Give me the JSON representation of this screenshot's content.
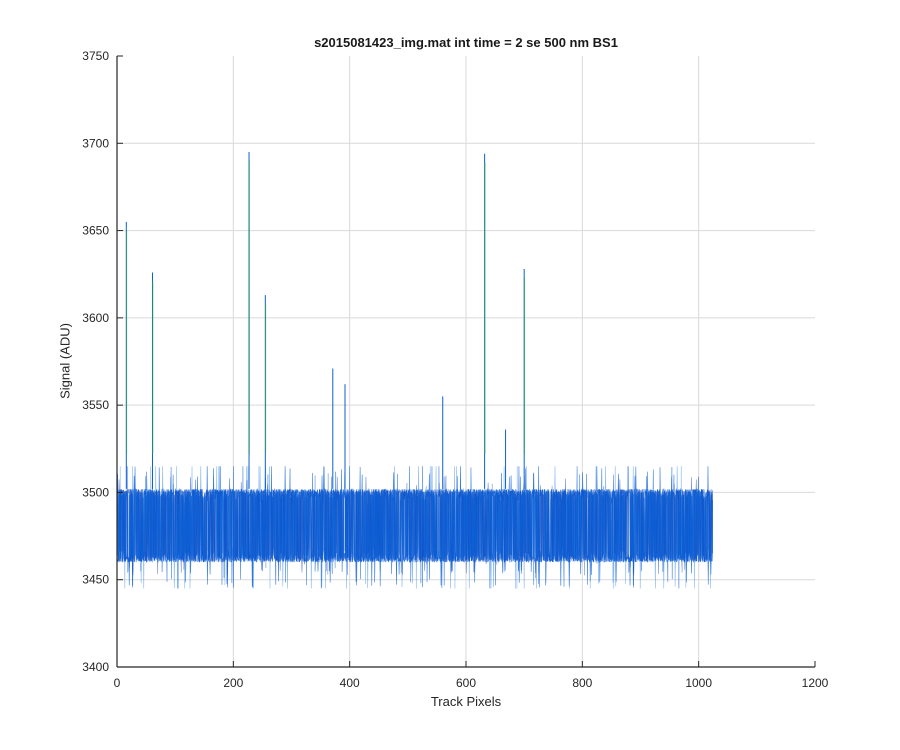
{
  "chart_data": {
    "type": "line",
    "title": "s2015081423_img.mat int time = 2 se  500 nm BS1",
    "xlabel": "Track Pixels",
    "ylabel": "Signal (ADU)",
    "xlim": [
      0,
      1200
    ],
    "ylim": [
      3400,
      3750
    ],
    "xticks": [
      0,
      200,
      400,
      600,
      800,
      1000,
      1200
    ],
    "yticks": [
      3400,
      3450,
      3500,
      3550,
      3600,
      3650,
      3700,
      3750
    ],
    "xtick_labels": [
      "0",
      "200",
      "400",
      "600",
      "800",
      "1000",
      "1200"
    ],
    "ytick_labels": [
      "3400",
      "3450",
      "3500",
      "3550",
      "3600",
      "3650",
      "3700",
      "3750"
    ],
    "grid": true,
    "n_points": 1024,
    "band": {
      "x_range": [
        1,
        1024
      ],
      "typical_min": 3460,
      "typical_max": 3502,
      "mean": 3482,
      "outer_min": 3445,
      "outer_max": 3515
    },
    "spikes": [
      {
        "x": 16,
        "y": 3655
      },
      {
        "x": 61,
        "y": 3626
      },
      {
        "x": 227,
        "y": 3695
      },
      {
        "x": 255,
        "y": 3613
      },
      {
        "x": 371,
        "y": 3571
      },
      {
        "x": 392,
        "y": 3562
      },
      {
        "x": 560,
        "y": 3555
      },
      {
        "x": 632,
        "y": 3694
      },
      {
        "x": 668,
        "y": 3536
      },
      {
        "x": 700,
        "y": 3628
      }
    ],
    "colors": {
      "band_primary": "#0a5fd6",
      "band_secondary": "#1f7ae8",
      "band_dark": "#0f3fb8",
      "spike_green": "#3cb43c",
      "grid": "#d9d9d9",
      "axis": "#262626"
    }
  }
}
